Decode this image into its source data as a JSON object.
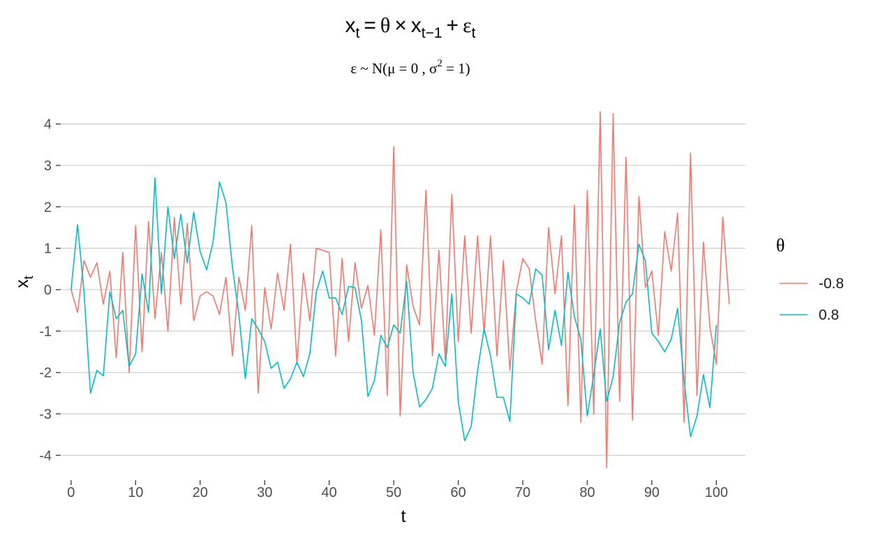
{
  "chart_data": {
    "type": "line",
    "title": {
      "x_var": "x",
      "x_sub": "t",
      "equals": "=",
      "theta": "θ",
      "times": "×",
      "lag_sub": "t−1",
      "plus": "+",
      "eps": "ε",
      "eps_sub": "t"
    },
    "subtitle": {
      "prefix": "ε ~ N(μ = 0 , σ",
      "sup": "2",
      "suffix": " = 1)"
    },
    "xlabel": "t",
    "ylabel": {
      "main": "x",
      "sub": "t"
    },
    "xlim": [
      -1.5,
      104.5
    ],
    "ylim": [
      -4.6,
      4.5
    ],
    "x_ticks": [
      "0",
      "10",
      "20",
      "30",
      "40",
      "50",
      "60",
      "70",
      "80",
      "90",
      "100"
    ],
    "y_ticks": [
      "-4",
      "-3",
      "-2",
      "-1",
      "0",
      "1",
      "2",
      "3",
      "4"
    ],
    "grid": "horizontal",
    "legend": {
      "title": "θ",
      "position": "right",
      "entries": [
        "-0.8",
        "0.8"
      ]
    },
    "series": [
      {
        "name": "-0.8",
        "color": "#F8766D",
        "values": [
          0,
          -0.55,
          0.7,
          0.3,
          0.65,
          -0.35,
          0.45,
          -1.65,
          0.9,
          -2.0,
          1.55,
          -1.5,
          1.65,
          -0.7,
          0.9,
          -1.0,
          1.75,
          -0.35,
          1.6,
          -0.75,
          -0.15,
          -0.05,
          -0.15,
          -0.6,
          0.3,
          -1.6,
          0.3,
          -0.5,
          1.55,
          -2.5,
          0.05,
          -0.95,
          0.4,
          -0.5,
          1.1,
          -1.8,
          0.4,
          -0.75,
          1.0,
          0.95,
          0.9,
          -1.6,
          0.75,
          -1.25,
          0.65,
          -0.45,
          0.1,
          -1.1,
          1.45,
          -2.55,
          3.45,
          -3.05,
          0.6,
          -0.4,
          -0.85,
          2.4,
          -1.6,
          0.95,
          -1.7,
          2.3,
          -1.25,
          1.3,
          -1.05,
          1.3,
          -1.05,
          1.3,
          -1.6,
          0.7,
          -1.95,
          -0.05,
          0.75,
          0.5,
          -0.75,
          -1.8,
          1.5,
          -0.1,
          1.3,
          -2.8,
          2.05,
          -3.2,
          2.4,
          -3.0,
          4.3,
          -4.3,
          4.25,
          -2.7,
          3.2,
          -3.15,
          2.25,
          0.05,
          0.45,
          -1.1,
          1.4,
          0.45,
          1.85,
          -3.2,
          3.3,
          -2.55,
          1.15,
          -0.9,
          -1.8,
          1.75,
          -0.35
        ]
      },
      {
        "name": "0.8",
        "color": "#00BFC4",
        "values": [
          0,
          1.57,
          -0.05,
          -2.5,
          -1.95,
          -2.08,
          -0.05,
          -0.7,
          -0.5,
          -1.85,
          -1.55,
          0.38,
          -0.55,
          2.7,
          -0.1,
          2.0,
          0.75,
          1.82,
          0.65,
          1.87,
          0.92,
          0.48,
          1.15,
          2.6,
          2.1,
          0.55,
          -0.6,
          -2.15,
          -0.7,
          -0.95,
          -1.25,
          -1.9,
          -1.75,
          -2.38,
          -2.15,
          -1.75,
          -2.1,
          -1.55,
          -0.05,
          0.45,
          -0.2,
          -0.2,
          -0.6,
          0.08,
          0.05,
          -0.75,
          -2.58,
          -2.2,
          -1.1,
          -1.4,
          -0.85,
          -1.05,
          0.2,
          -2.0,
          -2.83,
          -2.65,
          -2.38,
          -1.55,
          -1.85,
          -0.1,
          -2.7,
          -3.65,
          -3.3,
          -1.95,
          -0.95,
          -1.6,
          -2.6,
          -2.6,
          -3.18,
          -0.1,
          -0.2,
          -0.35,
          0.5,
          0.35,
          -1.45,
          -0.5,
          -1.35,
          0.42,
          -0.65,
          -1.2,
          -3.05,
          -2.05,
          -0.95,
          -2.7,
          -2.1,
          -0.8,
          -0.3,
          -0.1,
          1.1,
          0.7,
          -1.05,
          -1.25,
          -1.5,
          -1.2,
          -0.45,
          -2.2,
          -3.55,
          -3.05,
          -2.05,
          -2.85,
          -0.85
        ]
      }
    ]
  }
}
